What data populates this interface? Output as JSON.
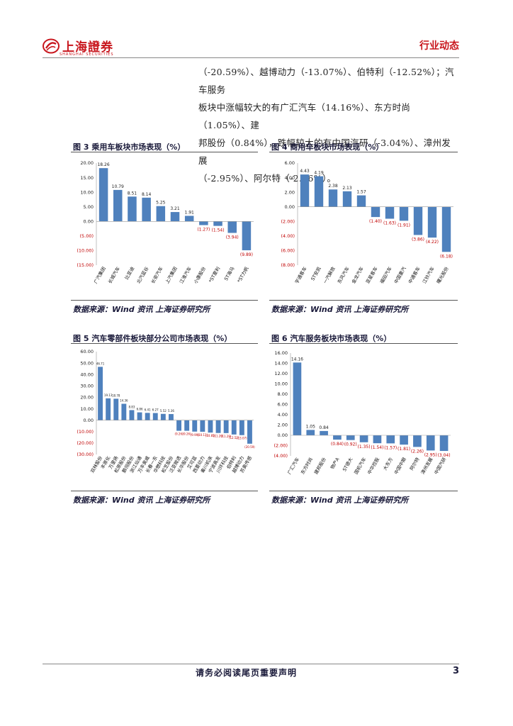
{
  "header": {
    "logo_text": "上海證券",
    "logo_sub": "SHANGHAI SECURITIES",
    "section": "行业动态"
  },
  "body_paragraph": [
    "（-20.59%）、越博动力（-13.07%）、伯特利（-12.52%）；汽车服务",
    "板块中涨幅较大的有广汇汽车（14.16%）、东方时尚（1.05%）、建",
    "邦股份（0.84%），跌幅较大的有中国汽研（-3.04%）、漳州发展",
    "（-2.95%）、阿尔特（-2.26%）。"
  ],
  "source_text": "数据来源：Wind 资讯  上海证券研究所",
  "footer": {
    "disclaimer": "请务必阅读尾页重要声明",
    "page": "3"
  },
  "chart_data": [
    {
      "type": "bar",
      "title": "图 3 乘用车板块市场表现（%）",
      "categories": [
        "广汽集团",
        "长城汽车",
        "比亚迪",
        "北汽蓝谷",
        "长安汽车",
        "上汽集团",
        "江淮汽车",
        "小康股份",
        "*ST夏利",
        "ST海马",
        "*ST力帆"
      ],
      "values": [
        18.26,
        10.79,
        8.51,
        8.14,
        5.25,
        3.21,
        1.91,
        -1.27,
        -1.54,
        -3.94,
        -9.89
      ],
      "labels": [
        "18.26",
        "10.79",
        "8.51",
        "8.14",
        "5.25",
        "3.21",
        "1.91",
        "(1.27)",
        "(1.54)",
        "(3.94)",
        "(9.89)"
      ],
      "yticks": [
        "20.00",
        "15.00",
        "10.00",
        "5.00",
        "0.00",
        "(5.00)",
        "(10.00)",
        "(15.00)"
      ],
      "ylim": [
        -15,
        20
      ],
      "bar_color": "#4f81bd",
      "neg_label_color": "#c00000"
    },
    {
      "type": "bar",
      "title": "图 4 商用车板块市场表现（%）",
      "categories": [
        "宇通客车",
        "ST安凯",
        "一汽解放",
        "东风汽车",
        "金龙汽车",
        "亚星客车",
        "福田汽车",
        "中国重汽",
        "中通客车",
        "江铃汽车",
        "曙光股份"
      ],
      "values": [
        4.43,
        4.19,
        2.38,
        2.13,
        1.57,
        -1.4,
        -1.63,
        -1.91,
        -3.86,
        -4.22,
        -6.18
      ],
      "labels": [
        "4.43",
        "4.19",
        "2.38",
        "2.13",
        "1.57",
        "(1.40)",
        "(1.63)",
        "(1.91)",
        "(3.86)",
        "(4.22)",
        "(6.18)"
      ],
      "yticks": [
        "6.00",
        "4.00",
        "2.00",
        "0.00",
        "(2.00)",
        "(4.00)",
        "(6.00)",
        "(8.00)"
      ],
      "ylim": [
        -8,
        6
      ],
      "bar_color": "#4f81bd",
      "neg_label_color": "#c00000"
    },
    {
      "type": "bar",
      "title": "图 5 汽车零部件板块部分公司市场表现（%）",
      "categories": [
        "双林股份",
        "丰原化",
        "万里扬",
        "松原股份",
        "鹏翎股份",
        "浙江仙通",
        "万丰奥威",
        "长春一东",
        "华懋科技",
        "松芝股份",
        "泛亚微透",
        "长华股份",
        "艾可蓝",
        "西菱动力",
        "秦川机床",
        "宁波高发",
        "川环科技",
        "伯特利",
        "越博动力",
        "苏奥传感"
      ],
      "values": [
        46.71,
        19.13,
        18.78,
        14.36,
        8.83,
        6.86,
        6.41,
        6.27,
        5.52,
        5.36,
        -9.26,
        -9.26,
        -9.99,
        -10.11,
        -10.85,
        -11.2,
        -11.29,
        -12.52,
        -13.07,
        -20.59
      ],
      "labels": [
        "46.71",
        "19.13",
        "18.78",
        "14.36",
        "8.83",
        "6.86",
        "6.41",
        "6.27",
        "5.52",
        "5.36",
        "(9.26)",
        "(9.26)",
        "(9.99)",
        "(10.11)",
        "(10.85)",
        "(11.20)",
        "(11.29)",
        "(12.52)",
        "(13.07)",
        "(20.59)"
      ],
      "yticks": [
        "60.00",
        "50.00",
        "40.00",
        "30.00",
        "20.00",
        "10.00",
        "0.00",
        "(10.00)",
        "(20.00)",
        "(30.00)"
      ],
      "ylim": [
        -30,
        60
      ],
      "bar_color": "#4f81bd",
      "neg_label_color": "#c00000"
    },
    {
      "type": "bar",
      "title": "图 6 汽车服务板块市场表现（%）",
      "categories": [
        "广汇汽车",
        "东方时尚",
        "建邦股份",
        "物产A",
        "ST德大",
        "国机汽车",
        "中华控股",
        "大东方",
        "中国中期",
        "阿尔特",
        "漳州发展",
        "中国汽研"
      ],
      "values": [
        14.16,
        1.05,
        0.84,
        -0.84,
        -0.92,
        -1.35,
        -1.54,
        -1.57,
        -1.81,
        -2.26,
        -2.95,
        -3.04
      ],
      "labels": [
        "14.16",
        "1.05",
        "0.84",
        "(0.84)",
        "(0.92)",
        "(1.35)",
        "(1.54)",
        "(1.57)",
        "(1.81)",
        "(2.26)",
        "(2.95)",
        "(3.04)"
      ],
      "yticks": [
        "16.00",
        "14.00",
        "12.00",
        "10.00",
        "8.00",
        "6.00",
        "4.00",
        "2.00",
        "0.00",
        "(2.00)",
        "(4.00)"
      ],
      "ylim": [
        -4,
        16
      ],
      "bar_color": "#4f81bd",
      "neg_label_color": "#c00000"
    }
  ]
}
